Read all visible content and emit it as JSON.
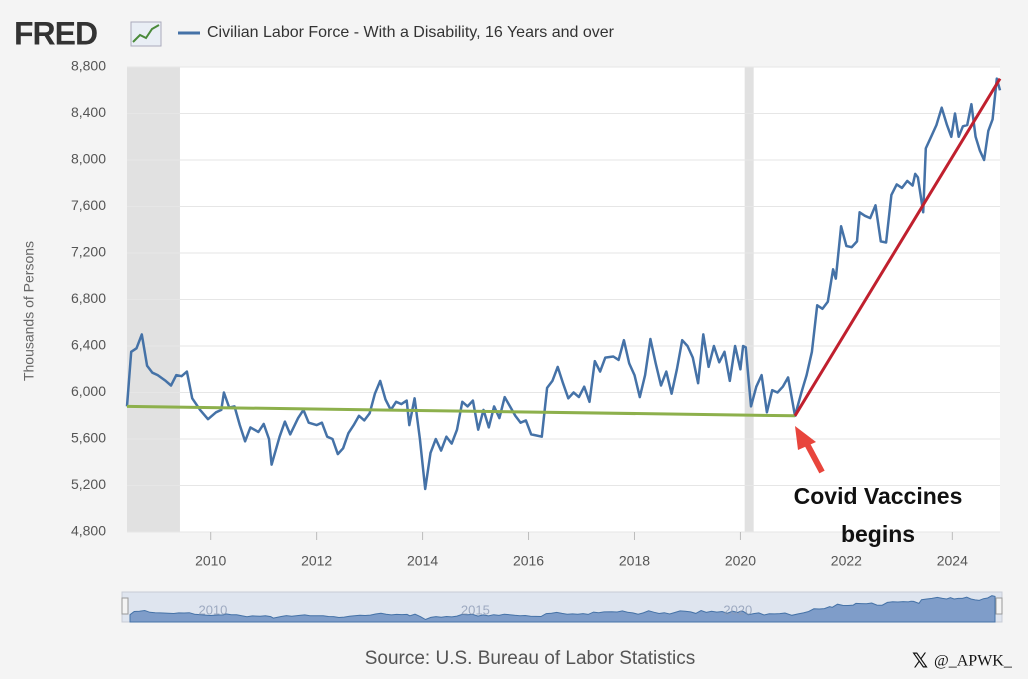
{
  "logo": "FRED",
  "source": "Source: U.S. Bureau of Labor Statistics",
  "watermark": "@_APWK_",
  "chart_data": {
    "type": "line",
    "y_label": "Thousands of Persons",
    "xlim": [
      2008.42,
      2024.9
    ],
    "xticks": [
      2010,
      2012,
      2014,
      2016,
      2018,
      2020,
      2022,
      2024
    ],
    "ylim": [
      4800,
      8800
    ],
    "yticks": [
      {
        "value": 4800,
        "label": "4,800"
      },
      {
        "value": 5200,
        "label": "5,200"
      },
      {
        "value": 5600,
        "label": "5,600"
      },
      {
        "value": 6000,
        "label": "6,000"
      },
      {
        "value": 6400,
        "label": "6,400"
      },
      {
        "value": 6800,
        "label": "6,800"
      },
      {
        "value": 7200,
        "label": "7,200"
      },
      {
        "value": 7600,
        "label": "7,600"
      },
      {
        "value": 8000,
        "label": "8,000"
      },
      {
        "value": 8400,
        "label": "8,400"
      },
      {
        "value": 8800,
        "label": "8,800"
      }
    ],
    "grid": true,
    "recessions": [
      [
        2008.42,
        2009.42
      ],
      [
        2020.08,
        2020.25
      ]
    ],
    "x": [
      2008.42,
      2008.5,
      2008.6,
      2008.7,
      2008.8,
      2008.9,
      2009.0,
      2009.15,
      2009.25,
      2009.35,
      2009.45,
      2009.55,
      2009.65,
      2009.8,
      2009.95,
      2010.1,
      2010.2,
      2010.25,
      2010.35,
      2010.45,
      2010.55,
      2010.65,
      2010.75,
      2010.9,
      2011.0,
      2011.1,
      2011.15,
      2011.3,
      2011.4,
      2011.5,
      2011.65,
      2011.75,
      2011.85,
      2012.0,
      2012.1,
      2012.2,
      2012.3,
      2012.4,
      2012.5,
      2012.6,
      2012.7,
      2012.8,
      2012.9,
      2013.0,
      2013.1,
      2013.2,
      2013.3,
      2013.4,
      2013.5,
      2013.6,
      2013.7,
      2013.75,
      2013.85,
      2013.95,
      2014.05,
      2014.15,
      2014.25,
      2014.35,
      2014.45,
      2014.55,
      2014.65,
      2014.75,
      2014.85,
      2014.95,
      2015.05,
      2015.15,
      2015.25,
      2015.35,
      2015.45,
      2015.55,
      2015.65,
      2015.75,
      2015.85,
      2015.95,
      2016.05,
      2016.15,
      2016.25,
      2016.35,
      2016.45,
      2016.55,
      2016.65,
      2016.75,
      2016.85,
      2016.95,
      2017.05,
      2017.15,
      2017.25,
      2017.35,
      2017.45,
      2017.6,
      2017.7,
      2017.8,
      2017.9,
      2018.0,
      2018.1,
      2018.2,
      2018.3,
      2018.4,
      2018.5,
      2018.6,
      2018.7,
      2018.8,
      2018.9,
      2019.0,
      2019.1,
      2019.2,
      2019.3,
      2019.4,
      2019.5,
      2019.6,
      2019.7,
      2019.8,
      2019.9,
      2020.0,
      2020.05,
      2020.1,
      2020.2,
      2020.3,
      2020.4,
      2020.5,
      2020.6,
      2020.7,
      2020.8,
      2020.9,
      2021.03,
      2021.15,
      2021.25,
      2021.35,
      2021.45,
      2021.55,
      2021.65,
      2021.75,
      2021.8,
      2021.9,
      2022.0,
      2022.1,
      2022.2,
      2022.25,
      2022.35,
      2022.45,
      2022.55,
      2022.65,
      2022.75,
      2022.85,
      2022.95,
      2023.05,
      2023.15,
      2023.25,
      2023.3,
      2023.35,
      2023.45,
      2023.5,
      2023.6,
      2023.7,
      2023.8,
      2023.9,
      2023.98,
      2024.05,
      2024.12,
      2024.2,
      2024.28,
      2024.36,
      2024.44,
      2024.52,
      2024.6,
      2024.68,
      2024.76,
      2024.84,
      2024.9
    ],
    "series": [
      {
        "name": "Civilian Labor Force - With a Disability, 16 Years and over",
        "color": "#4572a7",
        "values": [
          5880,
          6350,
          6380,
          6500,
          6230,
          6170,
          6150,
          6100,
          6060,
          6150,
          6140,
          6180,
          5950,
          5850,
          5770,
          5830,
          5850,
          6000,
          5870,
          5880,
          5720,
          5580,
          5700,
          5660,
          5730,
          5600,
          5380,
          5620,
          5750,
          5640,
          5780,
          5850,
          5740,
          5720,
          5740,
          5620,
          5600,
          5470,
          5520,
          5650,
          5720,
          5800,
          5760,
          5820,
          5990,
          6100,
          5940,
          5850,
          5920,
          5900,
          5930,
          5720,
          5950,
          5600,
          5170,
          5480,
          5600,
          5500,
          5620,
          5560,
          5680,
          5920,
          5880,
          5930,
          5680,
          5850,
          5700,
          5880,
          5780,
          5960,
          5880,
          5800,
          5740,
          5760,
          5640,
          5630,
          5620,
          6040,
          6100,
          6220,
          6080,
          5950,
          6000,
          5960,
          6050,
          5920,
          6270,
          6180,
          6300,
          6310,
          6280,
          6450,
          6250,
          6150,
          5960,
          6150,
          6460,
          6250,
          6060,
          6180,
          5990,
          6200,
          6450,
          6400,
          6300,
          6080,
          6500,
          6220,
          6400,
          6260,
          6350,
          6100,
          6400,
          6200,
          6400,
          6390,
          5880,
          6050,
          6150,
          5830,
          6020,
          6000,
          6050,
          6130,
          5800,
          6000,
          6150,
          6350,
          6750,
          6720,
          6780,
          7060,
          6980,
          7430,
          7260,
          7250,
          7300,
          7550,
          7520,
          7500,
          7610,
          7300,
          7290,
          7700,
          7790,
          7760,
          7820,
          7780,
          7880,
          7850,
          7550,
          8100,
          8200,
          8300,
          8450,
          8300,
          8200,
          8400,
          8200,
          8290,
          8300,
          8480,
          8200,
          8080,
          8000,
          8250,
          8350,
          8700,
          8600
        ]
      }
    ],
    "trend_lines": [
      {
        "color": "#8db04c",
        "x": [
          2008.42,
          2021.03
        ],
        "values": [
          5880,
          5800
        ]
      },
      {
        "color": "#c0202e",
        "x": [
          2021.03,
          2024.9
        ],
        "values": [
          5800,
          8700
        ]
      }
    ],
    "annotation": {
      "lines": [
        "Covid Vaccines",
        "begins"
      ],
      "color": "#e8453c"
    },
    "navigator": {
      "xticks": [
        2010,
        2015,
        2020
      ]
    }
  }
}
